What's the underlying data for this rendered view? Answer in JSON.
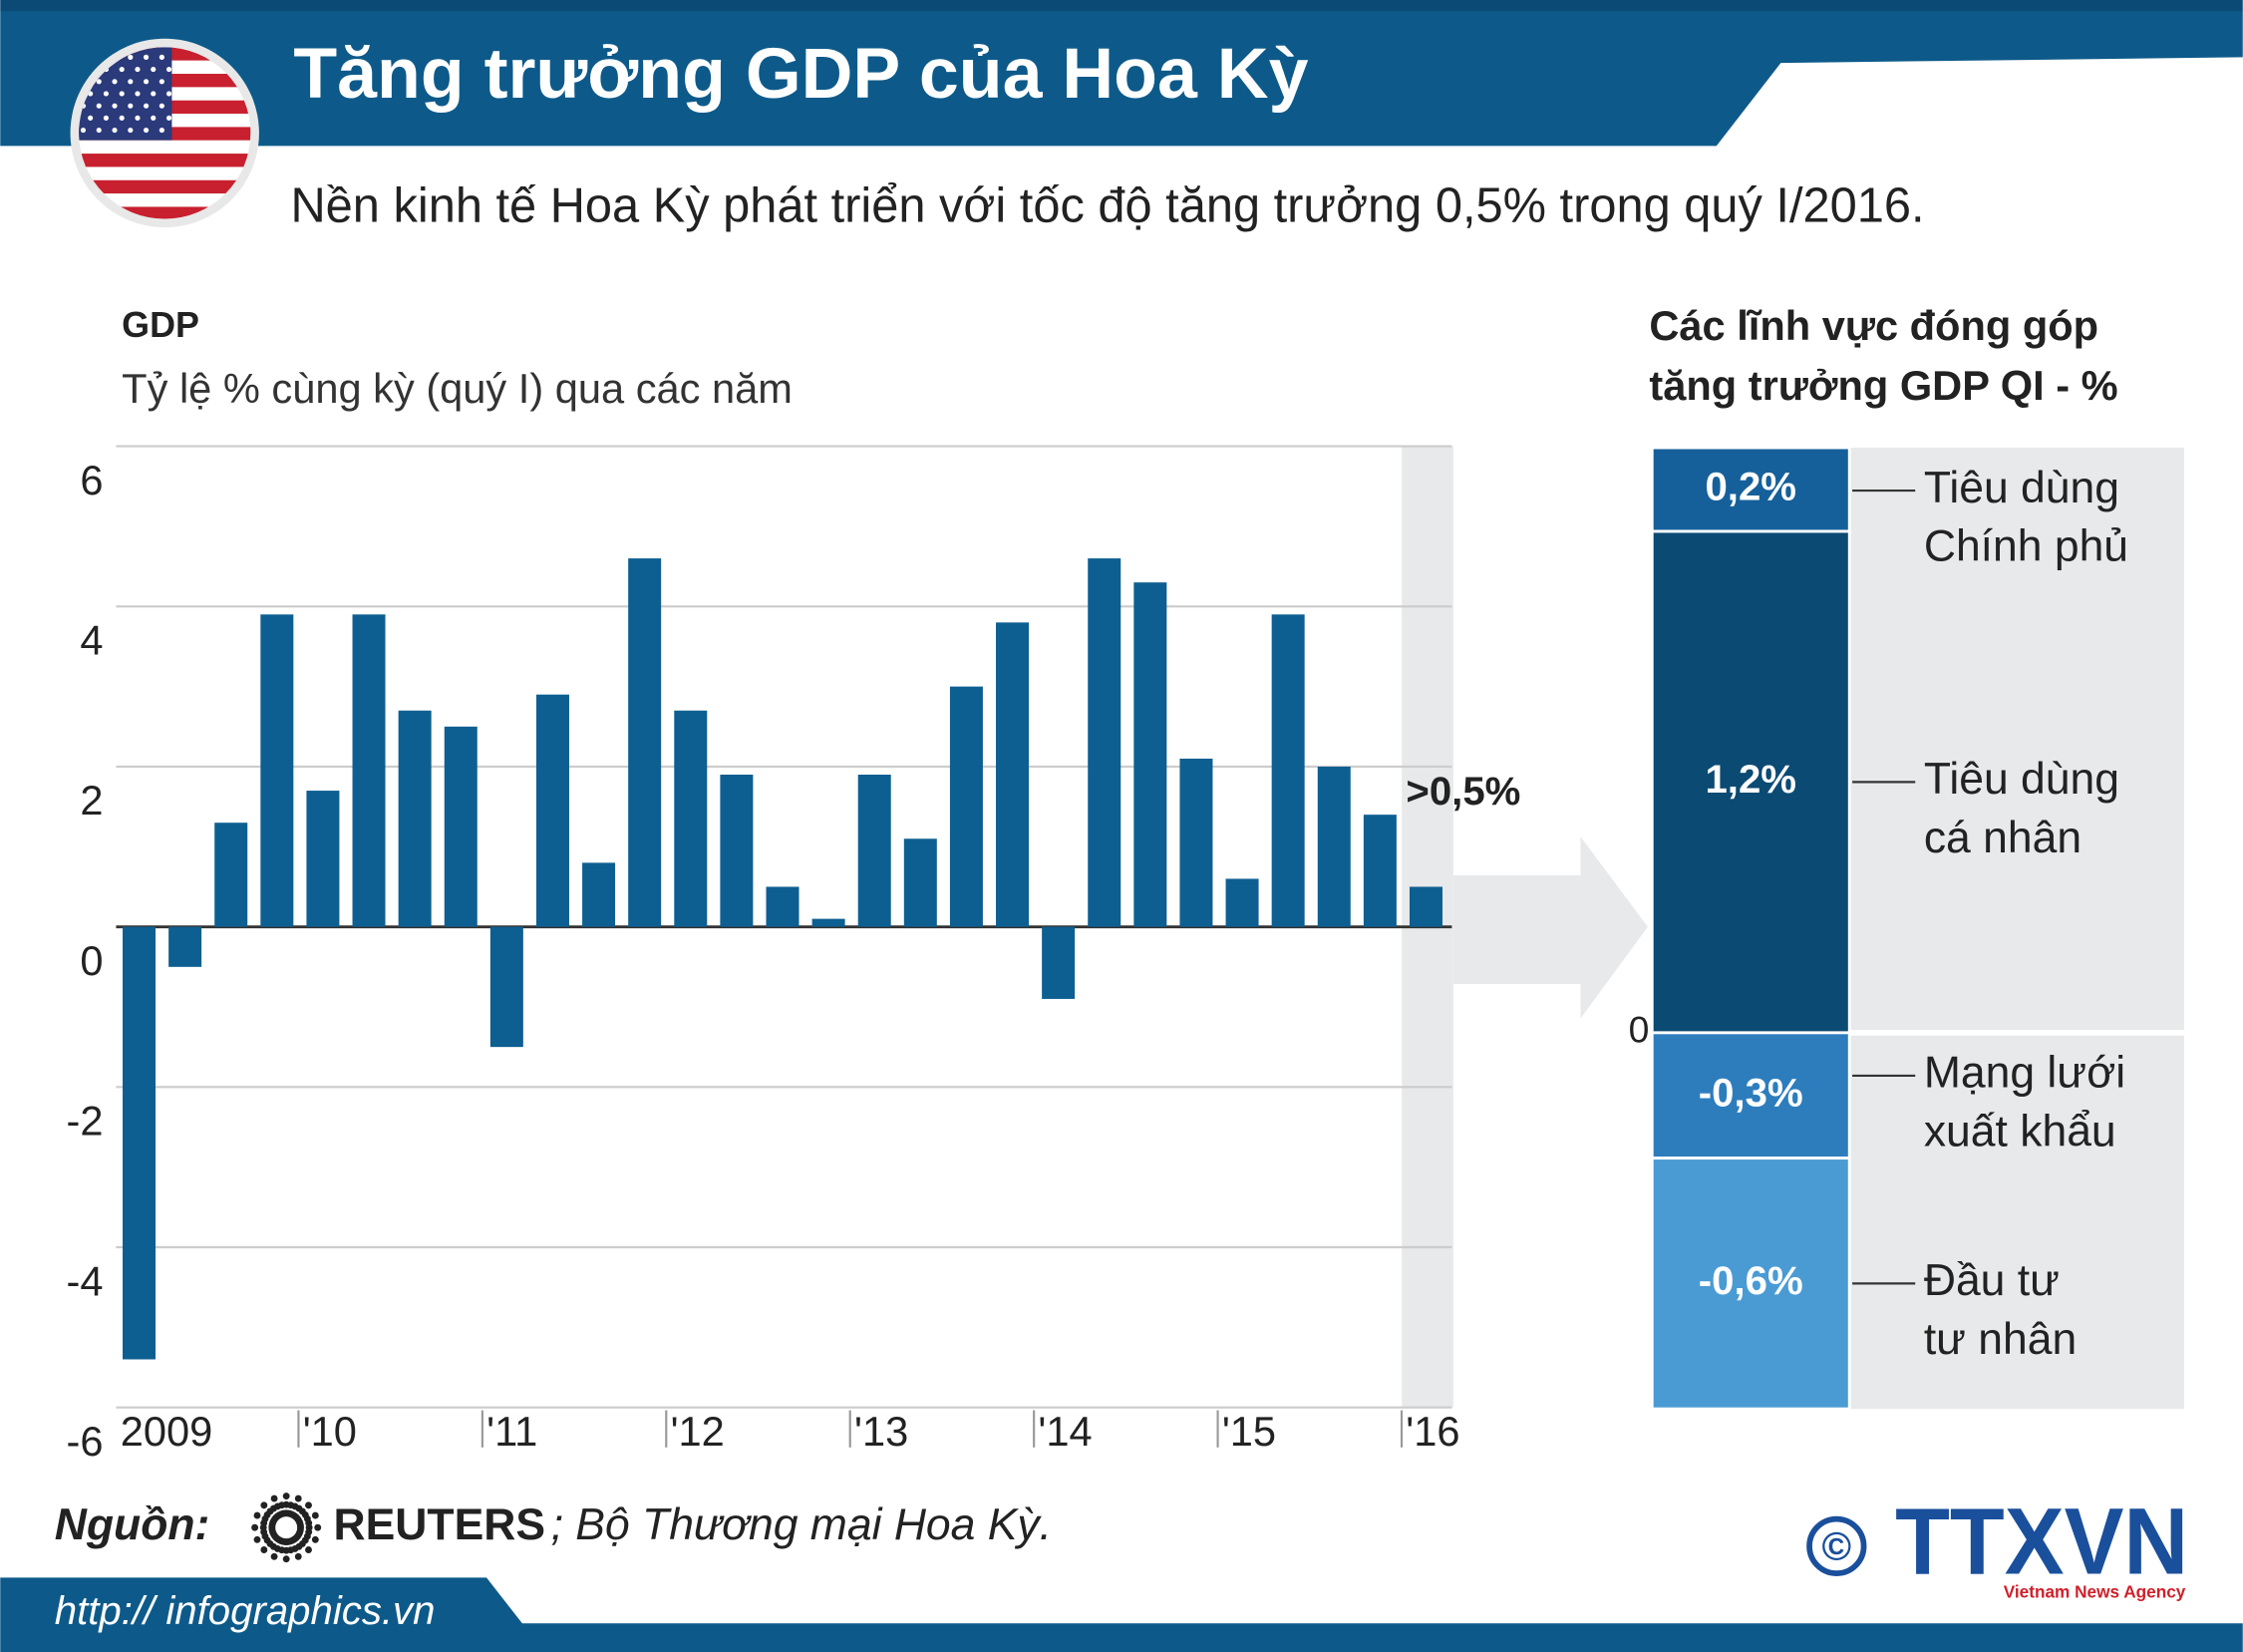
{
  "header": {
    "title": "Tăng trưởng GDP của Hoa Kỳ",
    "subtitle": "Nền kinh tế Hoa Kỳ phát triển với tốc độ tăng trưởng 0,5% trong quý I/2016."
  },
  "chart_data": [
    {
      "type": "bar",
      "title": "GDP",
      "subtitle": "Tỷ lệ % cùng kỳ (quý I) qua các năm",
      "categories": [
        "2009",
        null,
        null,
        null,
        "'10",
        null,
        null,
        null,
        "'11",
        null,
        null,
        null,
        "'12",
        null,
        null,
        null,
        "'13",
        null,
        null,
        null,
        "'14",
        null,
        null,
        null,
        "'15",
        null,
        null,
        null,
        "'16"
      ],
      "values": [
        -5.4,
        -0.5,
        1.3,
        3.9,
        1.7,
        3.9,
        2.7,
        2.5,
        -1.5,
        2.9,
        0.8,
        4.6,
        2.7,
        1.9,
        0.5,
        0.1,
        1.9,
        1.1,
        3.0,
        3.8,
        -0.9,
        4.6,
        4.3,
        2.1,
        0.6,
        3.9,
        2.0,
        1.4,
        0.5
      ],
      "color": "#0d5f91",
      "ylim": [
        -6,
        6
      ],
      "yticks": [
        -6,
        -4,
        -2,
        0,
        2,
        4,
        6
      ],
      "grid": true,
      "annotation": ">0,5%"
    },
    {
      "type": "stacked_bar",
      "title": [
        "Các lĩnh vực đóng góp",
        "tăng trưởng GDP QI - %"
      ],
      "series": [
        {
          "name": [
            "Tiêu dùng",
            "cá nhân"
          ],
          "color": "#0b4a72",
          "values": [
            1.2
          ],
          "value_labels": [
            "1,2%"
          ]
        },
        {
          "name": [
            "Tiêu dùng",
            "Chính phủ"
          ],
          "color": "#15609a",
          "values": [
            0.2
          ],
          "value_labels": [
            "0,2%"
          ]
        },
        {
          "name": [
            "Mạng lưới",
            "xuất khẩu"
          ],
          "color": "#2d7dbd",
          "values": [
            -0.3
          ],
          "value_labels": [
            "-0,3%"
          ]
        },
        {
          "name": [
            "Đầu tư",
            "tư nhân"
          ],
          "color": "#4a9bd4",
          "values": [
            -0.6
          ],
          "value_labels": [
            "-0,6%"
          ]
        }
      ],
      "ylim": [
        -0.9,
        1.4
      ],
      "yticks": [
        0
      ]
    }
  ],
  "source": {
    "label": "Nguồn:",
    "agency": "REUTERS",
    "rest": "; Bộ Thương mại Hoa Kỳ."
  },
  "footer": {
    "url": "http:// infographics.vn",
    "logo": "TTXVN",
    "logo_sub": "Vietnam News Agency",
    "copyright": "©"
  }
}
